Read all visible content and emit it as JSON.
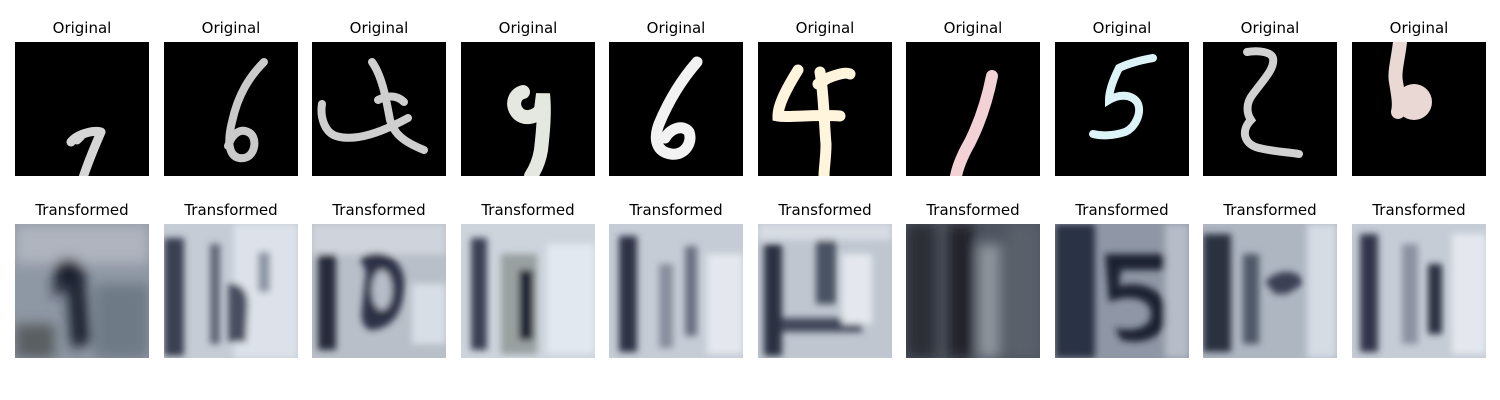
{
  "figure": {
    "original_title": "Original",
    "transformed_title": "Transformed",
    "originals": [
      {
        "digit": "7",
        "color": "#e8e8e8"
      },
      {
        "digit": "6",
        "color": "#e6e6e6"
      },
      {
        "digit": "4",
        "color": "#e6e6e6"
      },
      {
        "digit": "9",
        "color": "#e4e8e0"
      },
      {
        "digit": "6",
        "color": "#f2f2f2"
      },
      {
        "digit": "4",
        "color": "#fff4dc"
      },
      {
        "digit": "1",
        "color": "#f2d2d6"
      },
      {
        "digit": "5",
        "color": "#dcf4f8"
      },
      {
        "digit": "2",
        "color": "#e8e8e8"
      },
      {
        "digit": "6",
        "color": "#ead8d4"
      }
    ],
    "transformed": [
      {
        "digit": "1",
        "bg": "#8e97a4"
      },
      {
        "digit": "1",
        "bg": "#c6ccd6"
      },
      {
        "digit": "10",
        "bg": "#b9bfc8"
      },
      {
        "digit": "10",
        "bg": "#cdd4dc"
      },
      {
        "digit": "1",
        "bg": "#c6ccd6"
      },
      {
        "digit": "10",
        "bg": "#bfc6d0"
      },
      {
        "digit": "1",
        "bg": "#4e5460"
      },
      {
        "digit": "5",
        "bg": "#8f97a6"
      },
      {
        "digit": "1",
        "bg": "#aeb6c2"
      },
      {
        "digit": "1",
        "bg": "#c6ccd6"
      }
    ]
  }
}
